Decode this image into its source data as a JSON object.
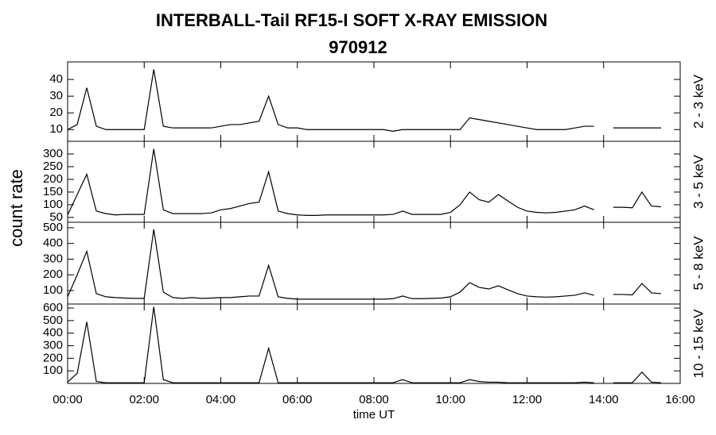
{
  "chart_data": [
    {
      "type": "line",
      "title": "INTERBALL-Tail RF15-I SOFT X-RAY EMISSION",
      "subtitle": "970912",
      "y_label": "count rate",
      "energy_label": "2 - 3 keV",
      "color": "#000000",
      "x": [
        0,
        0.25,
        0.5,
        0.75,
        1,
        1.25,
        1.5,
        1.75,
        2,
        2.25,
        2.5,
        2.75,
        3,
        3.25,
        3.5,
        3.75,
        4,
        4.25,
        4.5,
        4.75,
        5,
        5.25,
        5.5,
        5.75,
        6,
        6.25,
        6.5,
        6.75,
        7,
        7.25,
        7.5,
        7.75,
        8,
        8.25,
        8.5,
        8.75,
        9,
        9.25,
        9.5,
        9.75,
        10,
        10.25,
        10.5,
        10.75,
        11,
        11.25,
        11.5,
        11.75,
        12,
        12.25,
        12.5,
        12.75,
        13,
        13.25,
        13.5,
        13.75,
        14,
        14.25,
        14.5,
        14.75,
        15,
        15.25,
        15.5
      ],
      "values": [
        10,
        13,
        35,
        12,
        10,
        10,
        10,
        10,
        10,
        46,
        12,
        11,
        11,
        11,
        11,
        11,
        12,
        13,
        13,
        14,
        15,
        30,
        13,
        11,
        11,
        10,
        10,
        10,
        10,
        10,
        10,
        10,
        10,
        10,
        9,
        10,
        10,
        10,
        10,
        10,
        10,
        10,
        17,
        16,
        15,
        14,
        13,
        12,
        11,
        10,
        10,
        10,
        10,
        11,
        12,
        12,
        null,
        11,
        11,
        11,
        11,
        11,
        11
      ],
      "xlim": [
        0,
        16
      ],
      "ylim": [
        3,
        50.5
      ],
      "yticks": [
        10,
        20,
        30,
        40
      ]
    },
    {
      "type": "line",
      "energy_label": "3 - 5 keV",
      "color": "#000000",
      "x": [
        0,
        0.25,
        0.5,
        0.75,
        1,
        1.25,
        1.5,
        1.75,
        2,
        2.25,
        2.5,
        2.75,
        3,
        3.25,
        3.5,
        3.75,
        4,
        4.25,
        4.5,
        4.75,
        5,
        5.25,
        5.5,
        5.75,
        6,
        6.25,
        6.5,
        6.75,
        7,
        7.25,
        7.5,
        7.75,
        8,
        8.25,
        8.5,
        8.75,
        9,
        9.25,
        9.5,
        9.75,
        10,
        10.25,
        10.5,
        10.75,
        11,
        11.25,
        11.5,
        11.75,
        12,
        12.25,
        12.5,
        12.75,
        13,
        13.25,
        13.5,
        13.75,
        14,
        14.25,
        14.5,
        14.75,
        15,
        15.25,
        15.5
      ],
      "values": [
        60,
        140,
        220,
        75,
        65,
        60,
        62,
        62,
        62,
        320,
        80,
        65,
        65,
        65,
        65,
        68,
        80,
        85,
        95,
        105,
        110,
        230,
        75,
        65,
        60,
        58,
        58,
        60,
        60,
        60,
        60,
        60,
        60,
        60,
        62,
        75,
        62,
        62,
        62,
        62,
        70,
        100,
        150,
        120,
        110,
        140,
        115,
        90,
        75,
        70,
        68,
        70,
        75,
        80,
        95,
        80,
        null,
        90,
        90,
        88,
        150,
        95,
        92
      ],
      "xlim": [
        0,
        16
      ],
      "ylim": [
        31,
        350
      ],
      "yticks": [
        50,
        100,
        150,
        200,
        250,
        300
      ]
    },
    {
      "type": "line",
      "energy_label": "5 - 8 keV",
      "color": "#000000",
      "x": [
        0,
        0.25,
        0.5,
        0.75,
        1,
        1.25,
        1.5,
        1.75,
        2,
        2.25,
        2.5,
        2.75,
        3,
        3.25,
        3.5,
        3.75,
        4,
        4.25,
        4.5,
        4.75,
        5,
        5.25,
        5.5,
        5.75,
        6,
        6.25,
        6.5,
        6.75,
        7,
        7.25,
        7.5,
        7.75,
        8,
        8.25,
        8.5,
        8.75,
        9,
        9.25,
        9.5,
        9.75,
        10,
        10.25,
        10.5,
        10.75,
        11,
        11.25,
        11.5,
        11.75,
        12,
        12.25,
        12.5,
        12.75,
        13,
        13.25,
        13.5,
        13.75,
        14,
        14.25,
        14.5,
        14.75,
        15,
        15.25,
        15.5
      ],
      "values": [
        60,
        200,
        350,
        80,
        60,
        55,
        52,
        50,
        50,
        490,
        90,
        55,
        50,
        55,
        50,
        52,
        55,
        55,
        60,
        65,
        65,
        260,
        60,
        50,
        45,
        45,
        45,
        45,
        45,
        45,
        45,
        45,
        45,
        45,
        48,
        65,
        48,
        48,
        50,
        52,
        60,
        90,
        150,
        120,
        110,
        130,
        105,
        80,
        65,
        60,
        58,
        60,
        65,
        70,
        85,
        70,
        null,
        75,
        75,
        72,
        145,
        85,
        80
      ],
      "xlim": [
        0,
        16
      ],
      "ylim": [
        14,
        535
      ],
      "yticks": [
        100,
        200,
        300,
        400,
        500
      ]
    },
    {
      "type": "line",
      "energy_label": "10 - 15 keV",
      "x_label": "time UT",
      "color": "#000000",
      "x": [
        0,
        0.25,
        0.5,
        0.75,
        1,
        1.25,
        1.5,
        1.75,
        2,
        2.25,
        2.5,
        2.75,
        3,
        3.25,
        3.5,
        3.75,
        4,
        4.25,
        4.5,
        4.75,
        5,
        5.25,
        5.5,
        5.75,
        6,
        6.25,
        6.5,
        6.75,
        7,
        7.25,
        7.5,
        7.75,
        8,
        8.25,
        8.5,
        8.75,
        9,
        9.25,
        9.5,
        9.75,
        10,
        10.25,
        10.5,
        10.75,
        11,
        11.25,
        11.5,
        11.75,
        12,
        12.25,
        12.5,
        12.75,
        13,
        13.25,
        13.5,
        13.75,
        14,
        14.25,
        14.5,
        14.75,
        15,
        15.25,
        15.5
      ],
      "values": [
        10,
        80,
        490,
        15,
        5,
        5,
        5,
        5,
        5,
        610,
        30,
        5,
        5,
        5,
        5,
        5,
        5,
        5,
        5,
        5,
        5,
        280,
        5,
        5,
        5,
        5,
        5,
        5,
        5,
        5,
        5,
        5,
        5,
        5,
        5,
        30,
        5,
        5,
        5,
        5,
        5,
        5,
        30,
        15,
        10,
        10,
        5,
        5,
        5,
        5,
        5,
        5,
        5,
        5,
        10,
        5,
        null,
        5,
        5,
        5,
        90,
        10,
        5
      ],
      "xlim": [
        0,
        16
      ],
      "ylim": [
        0,
        632
      ],
      "yticks": [
        100,
        200,
        300,
        400,
        500,
        600
      ],
      "xticks": [
        {
          "value": 0,
          "label": "00:00"
        },
        {
          "value": 2,
          "label": "02:00"
        },
        {
          "value": 4,
          "label": "04:00"
        },
        {
          "value": 6,
          "label": "06:00"
        },
        {
          "value": 8,
          "label": "08:00"
        },
        {
          "value": 10,
          "label": "10:00"
        },
        {
          "value": 12,
          "label": "12:00"
        },
        {
          "value": 14,
          "label": "14:00"
        },
        {
          "value": 16,
          "label": "16:00"
        }
      ]
    }
  ]
}
